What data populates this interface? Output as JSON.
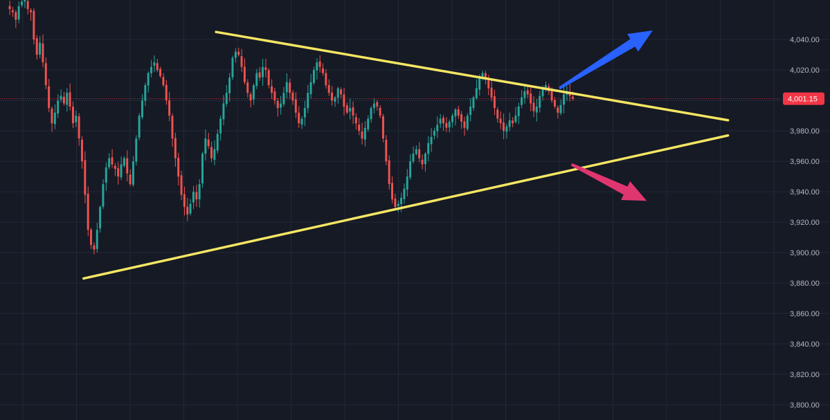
{
  "chart_data": {
    "type": "candlestick",
    "symbol": "",
    "title": "",
    "xlabel": "",
    "ylabel": "",
    "ylim": [
      3790,
      4066
    ],
    "y_ticks": [
      3800,
      3820,
      3840,
      3860,
      3880,
      3900,
      3920,
      3940,
      3960,
      3980,
      4000,
      4020,
      4040
    ],
    "y_tick_labels": [
      "3,800.00",
      "3,820.00",
      "3,840.00",
      "3,860.00",
      "3,880.00",
      "3,900.00",
      "3,920.00",
      "3,940.00",
      "3,960.00",
      "3,980.00",
      "4,000.00",
      "4,020.00",
      "4,040.00"
    ],
    "grid": true,
    "last_price": 4001.15,
    "last_price_label": "4,001.15",
    "colors": {
      "background": "#161a25",
      "grid": "#232838",
      "up": "#26a69a",
      "down": "#ef5350",
      "trendline": "#f5e663",
      "bull_arrow": "#2962ff",
      "bear_arrow": "#e0366f",
      "price_badge": "#f23645",
      "axis_text": "#b2b5be"
    },
    "close_series": [
      4060,
      4058,
      4053,
      4062,
      4065,
      4066,
      4060,
      4058,
      4040,
      4030,
      4038,
      4025,
      4010,
      3995,
      3985,
      3992,
      4000,
      4003,
      3998,
      4005,
      3996,
      3985,
      3990,
      3975,
      3960,
      3938,
      3915,
      3905,
      3902,
      3915,
      3930,
      3945,
      3956,
      3962,
      3958,
      3955,
      3950,
      3958,
      3962,
      3952,
      3945,
      3960,
      3975,
      3990,
      4000,
      4010,
      4018,
      4022,
      4025,
      4020,
      4016,
      4010,
      4000,
      3990,
      3975,
      3962,
      3950,
      3938,
      3930,
      3925,
      3932,
      3940,
      3935,
      3945,
      3965,
      3975,
      3970,
      3962,
      3968,
      3978,
      3988,
      3998,
      4005,
      4015,
      4028,
      4032,
      4030,
      4022,
      4012,
      4005,
      4000,
      4010,
      4018,
      4015,
      4022,
      4020,
      4010,
      4005,
      4000,
      3995,
      3998,
      4005,
      4012,
      4005,
      4000,
      3992,
      3985,
      3988,
      3995,
      4005,
      4012,
      4020,
      4025,
      4022,
      4018,
      4010,
      4005,
      4000,
      4002,
      4008,
      4004,
      3996,
      3992,
      3995,
      3990,
      3985,
      3980,
      3975,
      3982,
      3988,
      3995,
      3998,
      3996,
      3990,
      3975,
      3960,
      3945,
      3935,
      3930,
      3932,
      3936,
      3942,
      3950,
      3960,
      3965,
      3968,
      3962,
      3958,
      3965,
      3972,
      3976,
      3980,
      3984,
      3988,
      3985,
      3982,
      3986,
      3990,
      3994,
      3990,
      3986,
      3982,
      3990,
      3996,
      4002,
      4008,
      4015,
      4018,
      4014,
      4008,
      4002,
      3995,
      3988,
      3985,
      3980,
      3983,
      3987,
      3985,
      3990,
      3996,
      4002,
      4006,
      4004,
      3998,
      3993,
      3996,
      4003,
      4008,
      4010,
      4006,
      4000,
      3996,
      3992,
      3997,
      4004,
      4006,
      4003,
      4001.15
    ],
    "trendlines": [
      {
        "name": "upper",
        "from": {
          "bar": 69,
          "price": 4045
        },
        "to": {
          "bar": 239,
          "price": 3987
        }
      },
      {
        "name": "lower",
        "from": {
          "bar": 25,
          "price": 3883
        },
        "to": {
          "bar": 239,
          "price": 3977
        }
      }
    ],
    "arrows": [
      {
        "name": "bullish",
        "from": {
          "bar": 183,
          "price": 4008
        },
        "to": {
          "bar": 214,
          "price": 4046
        }
      },
      {
        "name": "bearish",
        "from": {
          "bar": 187,
          "price": 3958
        },
        "to": {
          "bar": 212,
          "price": 3934
        }
      }
    ],
    "x_bars": 240
  }
}
